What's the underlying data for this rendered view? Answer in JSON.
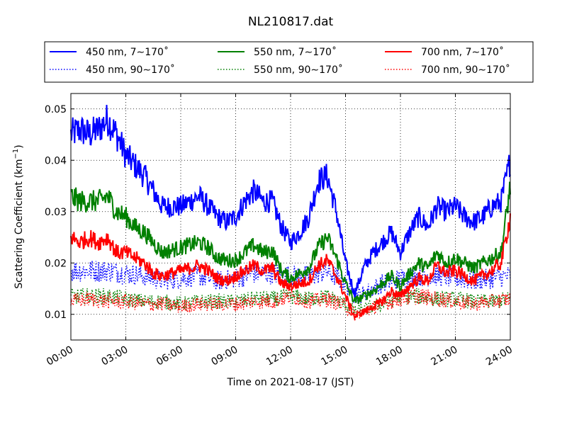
{
  "chart_data": {
    "type": "line",
    "title": "NL210817.dat",
    "xlabel": "Time on 2021-08-17 (JST)",
    "ylabel_main": "Scattering Coefficient (km",
    "ylabel_sup": "−1",
    "ylabel_close": ")",
    "xlim": [
      0,
      24
    ],
    "ylim": [
      0.005,
      0.053
    ],
    "x_ticks": [
      0,
      3,
      6,
      9,
      12,
      15,
      18,
      21,
      24
    ],
    "x_tick_labels": [
      "00:00",
      "03:00",
      "06:00",
      "09:00",
      "12:00",
      "15:00",
      "18:00",
      "21:00",
      "24:00"
    ],
    "y_ticks": [
      0.01,
      0.02,
      0.03,
      0.04,
      0.05
    ],
    "y_tick_labels": [
      "0.01",
      "0.02",
      "0.03",
      "0.04",
      "0.05"
    ],
    "grid": true,
    "legend_placement": "top, outside plot",
    "series": [
      {
        "name": "450 nm, 7∼170˚",
        "color": "#0000ff",
        "style": "solid",
        "x": [
          0,
          0.5,
          1,
          1.5,
          2,
          2.5,
          3,
          3.5,
          4,
          4.5,
          5,
          6,
          7,
          7.5,
          8,
          8.5,
          9,
          9.5,
          10,
          10.5,
          11,
          11.5,
          12,
          12.5,
          13,
          13.5,
          14,
          14.5,
          15,
          15.5,
          16,
          16.5,
          17,
          17.5,
          18,
          18.5,
          19,
          19.5,
          20,
          20.5,
          21,
          21.5,
          22,
          22.5,
          23,
          23.5,
          24
        ],
        "y": [
          0.045,
          0.046,
          0.045,
          0.046,
          0.048,
          0.045,
          0.041,
          0.039,
          0.037,
          0.034,
          0.031,
          0.031,
          0.033,
          0.031,
          0.029,
          0.028,
          0.029,
          0.032,
          0.034,
          0.032,
          0.032,
          0.027,
          0.024,
          0.026,
          0.029,
          0.036,
          0.037,
          0.03,
          0.02,
          0.014,
          0.019,
          0.022,
          0.024,
          0.026,
          0.022,
          0.026,
          0.029,
          0.027,
          0.031,
          0.03,
          0.031,
          0.029,
          0.028,
          0.029,
          0.031,
          0.032,
          0.04
        ]
      },
      {
        "name": "450 nm, 90∼170˚",
        "color": "#0000ff",
        "style": "dotted",
        "x": [
          0,
          1,
          2,
          3,
          4,
          5,
          6,
          7,
          8,
          9,
          10,
          11,
          12,
          13,
          14,
          15,
          15.5,
          16,
          17,
          18,
          19,
          20,
          21,
          22,
          23,
          24
        ],
        "y": [
          0.0185,
          0.0185,
          0.0185,
          0.018,
          0.0175,
          0.0165,
          0.017,
          0.0175,
          0.0165,
          0.017,
          0.018,
          0.018,
          0.0175,
          0.0175,
          0.0185,
          0.016,
          0.0135,
          0.014,
          0.016,
          0.017,
          0.0175,
          0.0175,
          0.017,
          0.0165,
          0.017,
          0.0175
        ]
      },
      {
        "name": "550 nm, 7∼170˚",
        "color": "#008000",
        "style": "solid",
        "x": [
          0,
          0.5,
          1,
          1.5,
          2,
          2.5,
          3,
          3.5,
          4,
          4.5,
          5,
          6,
          7,
          7.5,
          8,
          8.5,
          9,
          9.5,
          10,
          10.5,
          11,
          11.5,
          12,
          12.5,
          13,
          13.5,
          14,
          14.5,
          15,
          15.5,
          16,
          16.5,
          17,
          17.5,
          18,
          18.5,
          19,
          19.5,
          20,
          20.5,
          21,
          21.5,
          22,
          22.5,
          23,
          23.5,
          24
        ],
        "y": [
          0.033,
          0.032,
          0.032,
          0.032,
          0.033,
          0.03,
          0.029,
          0.027,
          0.026,
          0.024,
          0.022,
          0.023,
          0.024,
          0.023,
          0.021,
          0.0205,
          0.0205,
          0.022,
          0.0235,
          0.022,
          0.0225,
          0.0185,
          0.017,
          0.018,
          0.019,
          0.023,
          0.025,
          0.021,
          0.016,
          0.0125,
          0.0135,
          0.0145,
          0.016,
          0.0175,
          0.0155,
          0.018,
          0.02,
          0.019,
          0.022,
          0.02,
          0.021,
          0.02,
          0.019,
          0.02,
          0.021,
          0.022,
          0.035
        ]
      },
      {
        "name": "550 nm, 90∼170˚",
        "color": "#008000",
        "style": "dotted",
        "x": [
          0,
          1,
          2,
          3,
          4,
          5,
          6,
          7,
          8,
          9,
          10,
          11,
          12,
          13,
          14,
          15,
          15.5,
          16,
          17,
          18,
          19,
          20,
          21,
          22,
          23,
          24
        ],
        "y": [
          0.0135,
          0.0135,
          0.0135,
          0.013,
          0.0125,
          0.0125,
          0.012,
          0.0125,
          0.0125,
          0.0125,
          0.013,
          0.013,
          0.0135,
          0.013,
          0.0135,
          0.012,
          0.0105,
          0.011,
          0.012,
          0.0135,
          0.0135,
          0.013,
          0.013,
          0.0125,
          0.0125,
          0.013
        ]
      },
      {
        "name": "700 nm, 7∼170˚",
        "color": "#ff0000",
        "style": "solid",
        "x": [
          0,
          0.5,
          1,
          1.5,
          2,
          2.5,
          3,
          3.5,
          4,
          4.5,
          5,
          6,
          7,
          7.5,
          8,
          8.5,
          9,
          9.5,
          10,
          10.5,
          11,
          11.5,
          12,
          12.5,
          13,
          13.5,
          14,
          14.5,
          15,
          15.5,
          16,
          16.5,
          17,
          17.5,
          18,
          18.5,
          19,
          19.5,
          20,
          20.5,
          21,
          21.5,
          22,
          22.5,
          23,
          23.5,
          24
        ],
        "y": [
          0.025,
          0.024,
          0.025,
          0.024,
          0.025,
          0.022,
          0.022,
          0.021,
          0.02,
          0.018,
          0.0175,
          0.0185,
          0.0195,
          0.0185,
          0.017,
          0.0165,
          0.0175,
          0.0185,
          0.0195,
          0.0185,
          0.019,
          0.016,
          0.0155,
          0.016,
          0.0165,
          0.0195,
          0.0205,
          0.0175,
          0.0135,
          0.0095,
          0.0105,
          0.0115,
          0.0125,
          0.0145,
          0.0135,
          0.0155,
          0.017,
          0.0165,
          0.0195,
          0.018,
          0.0185,
          0.0175,
          0.0165,
          0.0175,
          0.0185,
          0.02,
          0.029
        ]
      },
      {
        "name": "700 nm, 90∼170˚",
        "color": "#ff0000",
        "style": "dotted",
        "x": [
          0,
          1,
          2,
          3,
          4,
          5,
          6,
          7,
          8,
          9,
          10,
          11,
          12,
          13,
          14,
          15,
          15.5,
          16,
          17,
          18,
          19,
          20,
          21,
          22,
          23,
          24
        ],
        "y": [
          0.0125,
          0.013,
          0.0125,
          0.0125,
          0.012,
          0.012,
          0.0115,
          0.012,
          0.012,
          0.012,
          0.0125,
          0.0125,
          0.0135,
          0.0125,
          0.013,
          0.0115,
          0.01,
          0.0105,
          0.012,
          0.013,
          0.0135,
          0.013,
          0.0125,
          0.012,
          0.0125,
          0.013
        ]
      }
    ]
  }
}
